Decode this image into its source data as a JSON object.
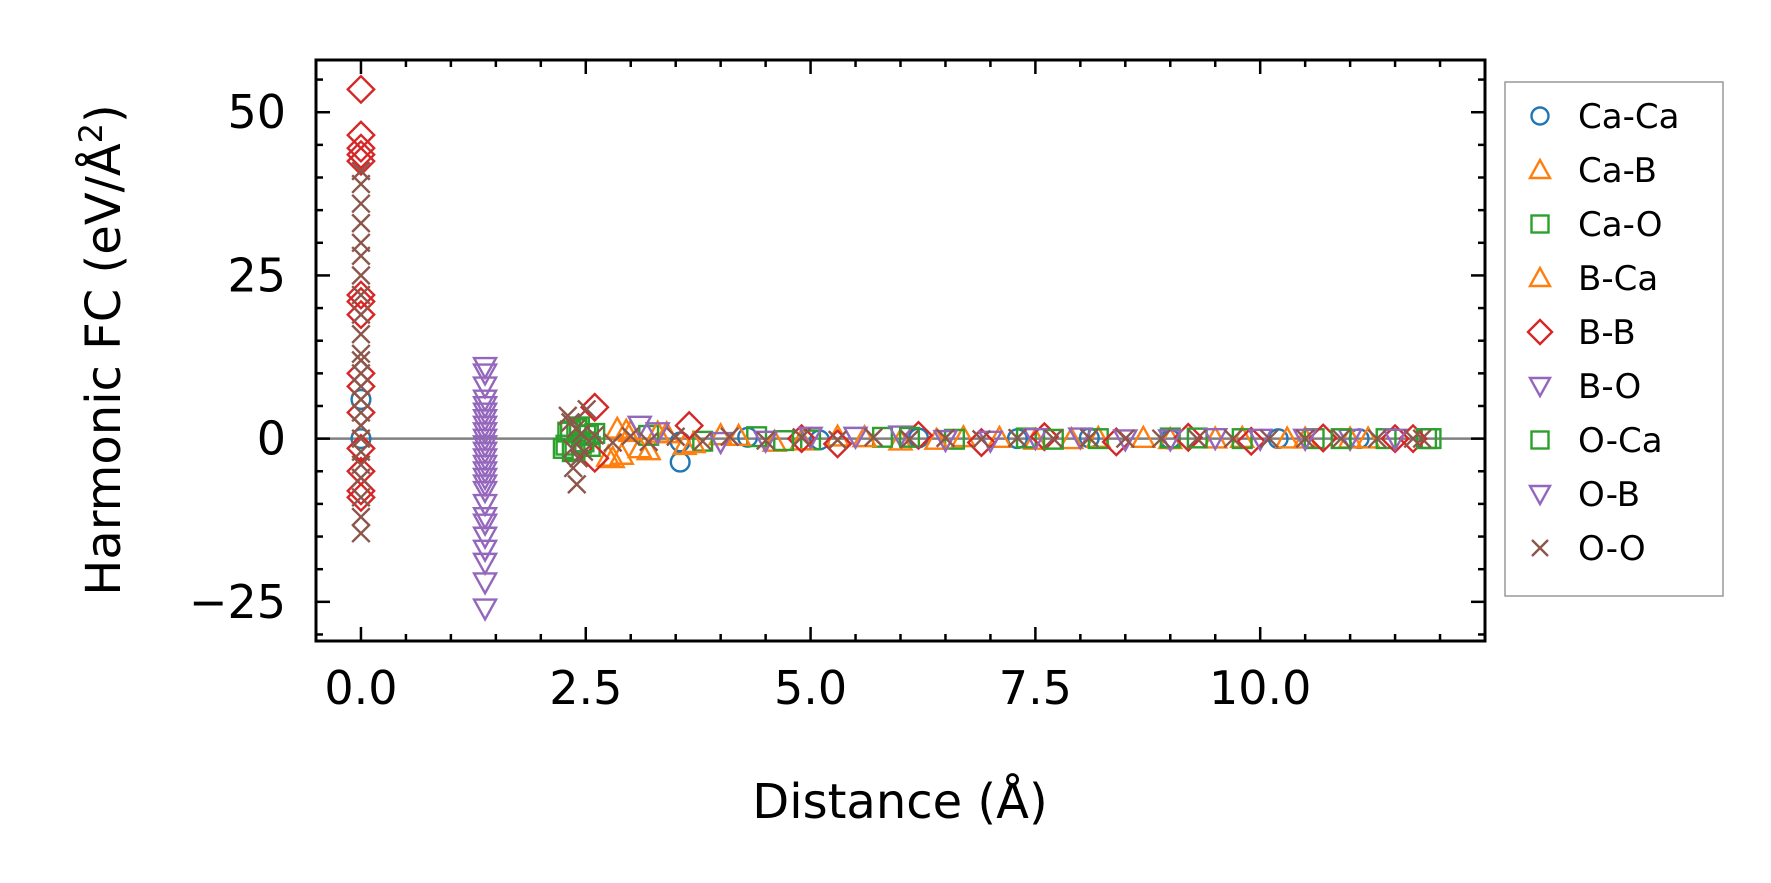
{
  "chart_data": {
    "type": "scatter",
    "title": "",
    "xlabel": "Distance (Å)",
    "ylabel": "Harmonic FC (eV/Å²)",
    "ylabel_text": "Harmonic FC (eV/Å",
    "ylabel_sup": "2",
    "ylabel_close": ")",
    "xlim": [
      -0.5,
      12.5
    ],
    "ylim": [
      -31,
      58
    ],
    "xticks": [
      0.0,
      2.5,
      5.0,
      7.5,
      10.0
    ],
    "xtick_labels": [
      "0.0",
      "2.5",
      "5.0",
      "7.5",
      "10.0"
    ],
    "yticks": [
      -25,
      0,
      25,
      50
    ],
    "ytick_labels": [
      "−25",
      "0",
      "25",
      "50"
    ],
    "zero_line": true,
    "legend_position": "outside-right",
    "series": [
      {
        "name": "Ca-Ca",
        "marker": "circle",
        "color": "#1f77b4",
        "x": [
          0.0,
          0.0,
          3.55,
          3.55,
          4.3,
          5.1,
          6.2,
          7.3,
          8.1,
          9.0,
          10.2,
          11.1
        ],
        "y": [
          6,
          0,
          -3.6,
          -0.5,
          0.2,
          -0.2,
          0.1,
          0.0,
          0.1,
          -0.1,
          0.0,
          0.0
        ]
      },
      {
        "name": "Ca-B",
        "marker": "triangle-up",
        "color": "#ff7f0e",
        "x": [
          2.8,
          2.85,
          2.9,
          3.0,
          3.2,
          3.4,
          3.6,
          4.0,
          4.6,
          5.3,
          6.0,
          6.7,
          7.5,
          8.2,
          9.0,
          9.8,
          10.5,
          11.2
        ],
        "y": [
          -3,
          1.5,
          -2.5,
          1.0,
          -1.8,
          0.8,
          -1.0,
          0.5,
          -0.5,
          0.3,
          -0.3,
          0.2,
          -0.2,
          0.1,
          -0.1,
          0.1,
          0.0,
          0.0
        ]
      },
      {
        "name": "Ca-O",
        "marker": "square",
        "color": "#2ca02c",
        "x": [
          2.25,
          2.3,
          2.35,
          2.4,
          2.45,
          2.5,
          2.55,
          2.6,
          3.2,
          3.8,
          4.4,
          5.0,
          5.8,
          6.6,
          7.4,
          8.2,
          9.0,
          9.8,
          10.6,
          11.4,
          11.9
        ],
        "y": [
          -1.5,
          1.0,
          -2.0,
          1.5,
          -0.8,
          0.5,
          -1.2,
          0.8,
          0.5,
          -0.4,
          0.3,
          -0.2,
          0.2,
          -0.1,
          0.1,
          0.0,
          0.1,
          0.0,
          0.0,
          0.0,
          0.0
        ]
      },
      {
        "name": "B-Ca",
        "marker": "triangle-up",
        "color": "#ff7f0e",
        "x": [
          2.75,
          2.95,
          3.1,
          3.3,
          3.7,
          4.2,
          4.9,
          5.6,
          6.4,
          7.1,
          7.9,
          8.7,
          9.5,
          10.3,
          11.0
        ],
        "y": [
          -2.8,
          1.2,
          -1.5,
          0.9,
          -0.7,
          0.4,
          -0.3,
          0.2,
          -0.2,
          0.1,
          -0.1,
          0.1,
          0.0,
          0.0,
          0.0
        ]
      },
      {
        "name": "B-B",
        "marker": "diamond",
        "color": "#d62728",
        "x": [
          0.0,
          0.0,
          0.0,
          0.0,
          0.0,
          0.0,
          0.0,
          0.0,
          0.0,
          0.0,
          0.0,
          0.0,
          0.0,
          0.0,
          0.0,
          2.6,
          2.6,
          3.65,
          4.9,
          5.3,
          6.2,
          6.9,
          7.6,
          8.4,
          9.2,
          9.9,
          10.7,
          11.5,
          11.7
        ],
        "y": [
          53.5,
          46.5,
          44.5,
          43.5,
          42.5,
          22,
          21,
          19,
          10,
          8,
          4,
          -1.5,
          -5,
          -8,
          -9,
          4.8,
          -3,
          2,
          0.0,
          -0.8,
          0.5,
          -0.6,
          0.3,
          -0.5,
          0.2,
          -0.4,
          0.1,
          0.0,
          0.0
        ]
      },
      {
        "name": "B-O",
        "marker": "triangle-down",
        "color": "#9467bd",
        "x": [
          1.38,
          1.38,
          1.38,
          1.38,
          1.38,
          1.38,
          1.38,
          1.38,
          1.38,
          1.38,
          1.38,
          1.38,
          1.38,
          3.1,
          4.0,
          5.0,
          6.0,
          7.0,
          8.0,
          9.0,
          10.0,
          11.0
        ],
        "y": [
          11,
          10,
          8,
          6,
          4,
          2,
          0,
          -2,
          -4,
          -6,
          -8,
          -10,
          -12,
          2,
          -0.5,
          0.3,
          0.5,
          -0.3,
          0.2,
          -0.1,
          0.0,
          0.0
        ]
      },
      {
        "name": "O-Ca",
        "marker": "square",
        "color": "#2ca02c",
        "x": [
          2.28,
          2.33,
          2.38,
          2.43,
          2.48,
          2.53,
          4.7,
          6.1,
          7.7,
          9.3,
          10.9,
          11.85
        ],
        "y": [
          -1.0,
          1.2,
          -1.8,
          1.8,
          -0.5,
          0.6,
          -0.3,
          0.2,
          -0.1,
          0.1,
          0.0,
          0.0
        ]
      },
      {
        "name": "O-B",
        "marker": "triangle-down",
        "color": "#9467bd",
        "x": [
          1.38,
          1.38,
          1.38,
          1.38,
          1.38,
          1.38,
          1.38,
          1.38,
          1.38,
          1.38,
          1.38,
          1.38,
          1.38,
          3.3,
          4.5,
          5.5,
          6.5,
          7.5,
          8.5,
          9.5,
          10.5,
          11.5
        ],
        "y": [
          5,
          3,
          1,
          -1,
          -3,
          -5,
          -7,
          -13,
          -15,
          -17,
          -19,
          -22,
          -26,
          1.0,
          -0.3,
          0.3,
          -0.2,
          0.1,
          -0.1,
          0.1,
          0.0,
          0.0
        ]
      },
      {
        "name": "O-O",
        "marker": "x",
        "color": "#8c564b",
        "x": [
          0.0,
          0.0,
          0.0,
          0.0,
          0.0,
          0.0,
          0.0,
          0.0,
          0.0,
          0.0,
          0.0,
          0.0,
          0.0,
          0.0,
          0.0,
          0.0,
          0.0,
          0.0,
          0.0,
          0.0,
          0.0,
          0.0,
          0.0,
          0.0,
          2.3,
          2.33,
          2.36,
          2.39,
          2.42,
          2.45,
          2.48,
          2.51,
          2.35,
          2.4,
          2.6,
          2.8,
          3.0,
          3.2,
          3.5,
          3.8,
          4.1,
          4.5,
          4.9,
          5.3,
          5.7,
          6.1,
          6.5,
          6.9,
          7.3,
          7.7,
          8.1,
          8.5,
          8.9,
          9.3,
          9.7,
          10.1,
          10.5,
          10.9,
          11.3,
          11.7,
          11.8
        ],
        "y": [
          41,
          39,
          36,
          33,
          30,
          28,
          25,
          22,
          19,
          16,
          13,
          12,
          10,
          8,
          6,
          4,
          2,
          0,
          -2,
          -4,
          -6,
          -9,
          -12,
          -14.5,
          3.5,
          2.5,
          -4.5,
          1.5,
          -3,
          0.8,
          -2,
          4.5,
          -1.5,
          -7,
          0.5,
          -0.6,
          0.4,
          -0.5,
          0.3,
          -0.4,
          0.3,
          -0.3,
          0.2,
          -0.2,
          0.2,
          -0.1,
          0.1,
          -0.1,
          0.1,
          0.0,
          0.1,
          0.0,
          0.0,
          0.0,
          0.0,
          0.0,
          0.0,
          0.0,
          0.0,
          0.0,
          0.0
        ]
      }
    ]
  }
}
